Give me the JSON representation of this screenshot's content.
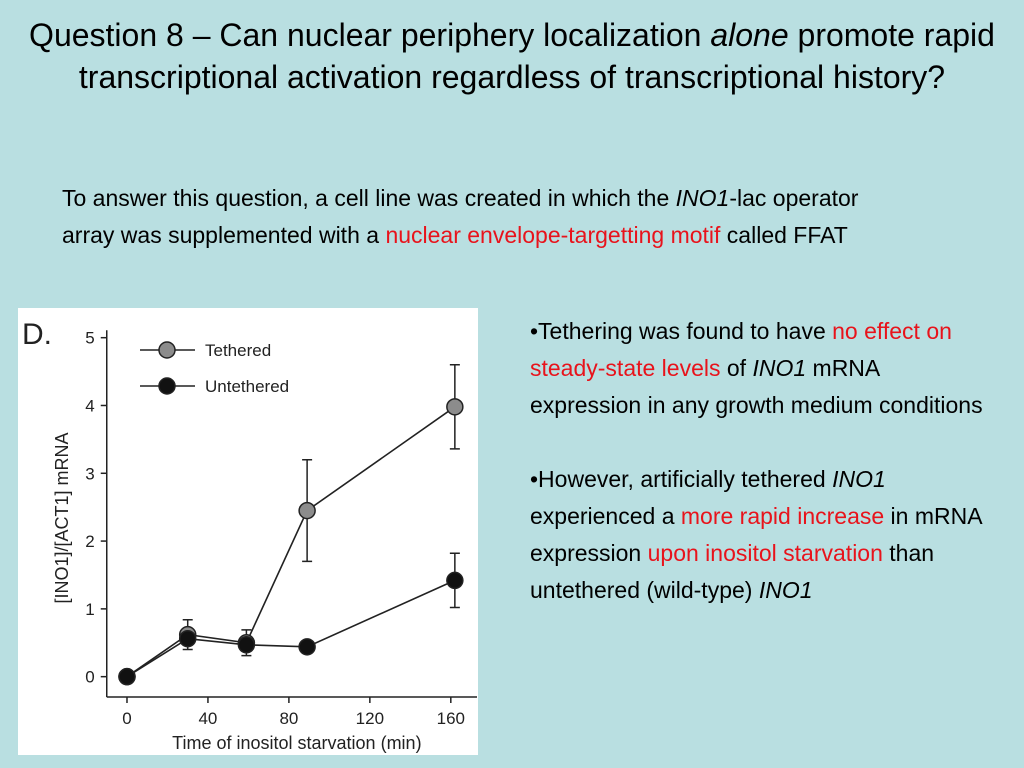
{
  "title": [
    {
      "text": "Question 8 – Can nuclear periphery localization "
    },
    {
      "text": "alone",
      "italic": true
    },
    {
      "text": " promote rapid transcriptional activation regardless of transcriptional history?"
    }
  ],
  "intro": [
    {
      "text": "To answer this question, a cell line was created in which the "
    },
    {
      "text": "INO1",
      "italic": true
    },
    {
      "text": "-lac operator array was supplemented with a "
    },
    {
      "text": "nuclear envelope-targetting motif",
      "color": "#e8131b"
    },
    {
      "text": " called FFAT"
    }
  ],
  "bullets": [
    [
      {
        "text": "•Tethering was found to have "
      },
      {
        "text": "no effect on steady-state levels",
        "color": "#e8131b"
      },
      {
        "text": " of "
      },
      {
        "text": "INO1",
        "italic": true
      },
      {
        "text": " mRNA expression in any growth medium conditions"
      }
    ],
    [
      {
        "text": "•However, artificially tethered "
      },
      {
        "text": "INO1",
        "italic": true
      },
      {
        "text": " experienced a "
      },
      {
        "text": "more rapid increase",
        "color": "#e8131b"
      },
      {
        "text": " in mRNA expression "
      },
      {
        "text": "upon inositol starvation",
        "color": "#e8131b"
      },
      {
        "text": " than untethered (wild-type) "
      },
      {
        "text": "INO1",
        "italic": true
      }
    ]
  ],
  "chart_data": {
    "type": "line",
    "panel_label": "D.",
    "x_label": "Time of inositol starvation (min)",
    "y_label": "[INO1]/[ACT1] mRNA",
    "x": [
      0,
      30,
      59,
      89,
      162
    ],
    "series": [
      {
        "name": "Tethered",
        "color": "#8c8c8c",
        "values": [
          0,
          0.62,
          0.5,
          2.45,
          3.98
        ],
        "errors": [
          null,
          0.22,
          0.19,
          0.75,
          0.62
        ]
      },
      {
        "name": "Untethered",
        "color": "#111111",
        "values": [
          0,
          0.56,
          0.47,
          0.44,
          1.42
        ],
        "errors": [
          null,
          null,
          null,
          null,
          0.4
        ]
      }
    ],
    "xlim": [
      -10,
      168
    ],
    "ylim": [
      -0.3,
      5.05
    ],
    "xticks": [
      0,
      40,
      80,
      120,
      160
    ],
    "yticks": [
      0,
      1,
      2,
      3,
      4,
      5
    ]
  }
}
